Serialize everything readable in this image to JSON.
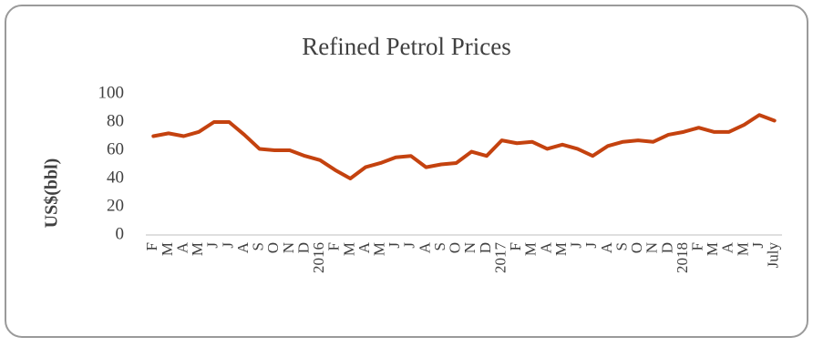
{
  "chart_data": {
    "type": "line",
    "title": "Refined Petrol Prices",
    "y_label": "US$(bbl)",
    "categories": [
      "F",
      "M",
      "A",
      "M",
      "J",
      "J",
      "A",
      "S",
      "O",
      "N",
      "D",
      "2016",
      "F",
      "M",
      "A",
      "M",
      "J",
      "J",
      "A",
      "S",
      "O",
      "N",
      "D",
      "2017",
      "F",
      "M",
      "A",
      "M",
      "J",
      "J",
      "A",
      "S",
      "O",
      "N",
      "D",
      "2018",
      "F",
      "M",
      "A",
      "M",
      "J",
      "July"
    ],
    "series": [
      {
        "name": "Refined Petrol Prices",
        "color": "#c4420f",
        "values": [
          70,
          72,
          70,
          73,
          80,
          80,
          71,
          61,
          60,
          60,
          56,
          53,
          46,
          40,
          48,
          51,
          55,
          56,
          48,
          50,
          51,
          59,
          56,
          67,
          65,
          66,
          61,
          64,
          61,
          56,
          63,
          66,
          67,
          66,
          71,
          73,
          76,
          73,
          73,
          78,
          85,
          81
        ]
      }
    ],
    "ylim": [
      0,
      100
    ],
    "yticks": [
      0,
      20,
      40,
      60,
      80,
      100
    ],
    "grid": false,
    "legend": false
  }
}
